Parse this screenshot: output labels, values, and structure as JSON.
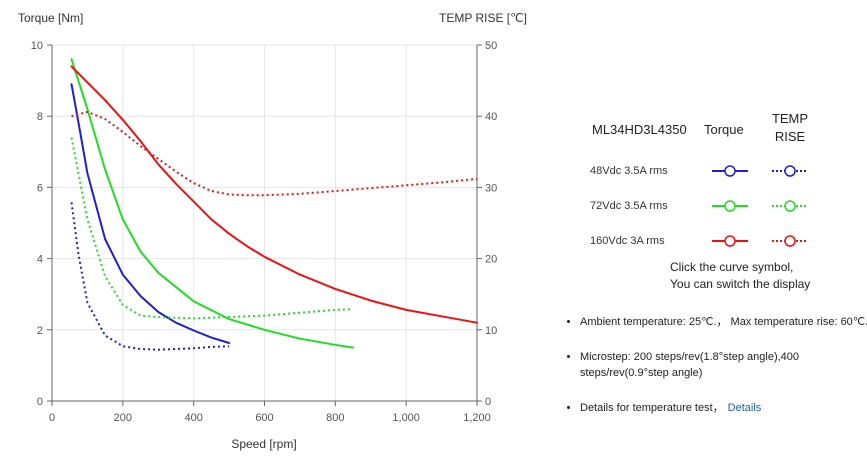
{
  "chart_data": {
    "type": "line",
    "y_left_label": "Torque  [Nm]",
    "y_right_label": "TEMP RISE [℃]",
    "xlabel": "Speed [rpm]",
    "xlim": [
      0,
      1200
    ],
    "ylim_left": [
      0,
      10
    ],
    "ylim_right": [
      0,
      50
    ],
    "x_ticks": [
      "0",
      "200",
      "400",
      "600",
      "800",
      "1,000",
      "1,200"
    ],
    "y_left_ticks": [
      "0",
      "2",
      "4",
      "6",
      "8",
      "10"
    ],
    "y_right_ticks": [
      "0",
      "10",
      "20",
      "30",
      "40",
      "50"
    ],
    "grid": true,
    "series": [
      {
        "kind": "torque",
        "axis": "left",
        "color": "#1f1fd0",
        "style": "solid",
        "x": [
          55,
          75,
          100,
          150,
          200,
          250,
          300,
          350,
          400,
          450,
          500
        ],
        "y": [
          8.9,
          7.8,
          6.4,
          4.55,
          3.55,
          2.95,
          2.5,
          2.2,
          1.98,
          1.78,
          1.63
        ]
      },
      {
        "kind": "temp",
        "axis": "right",
        "color": "#1f1fd0",
        "style": "dotted",
        "x": [
          55,
          75,
          100,
          150,
          200,
          250,
          300,
          350,
          400,
          450,
          500
        ],
        "y": [
          27.9,
          20.5,
          13.8,
          9.2,
          7.7,
          7.3,
          7.2,
          7.3,
          7.4,
          7.6,
          7.7
        ]
      },
      {
        "kind": "torque",
        "axis": "left",
        "color": "#22dd22",
        "style": "solid",
        "x": [
          55,
          100,
          150,
          200,
          250,
          300,
          400,
          500,
          600,
          700,
          800,
          850
        ],
        "y": [
          9.6,
          8.2,
          6.5,
          5.1,
          4.2,
          3.6,
          2.8,
          2.3,
          2.0,
          1.75,
          1.58,
          1.5
        ]
      },
      {
        "kind": "temp",
        "axis": "right",
        "color": "#22dd22",
        "style": "dotted",
        "x": [
          55,
          100,
          150,
          200,
          250,
          300,
          400,
          500,
          600,
          700,
          800,
          850
        ],
        "y": [
          37.0,
          25.5,
          17.5,
          13.5,
          12.0,
          11.8,
          11.6,
          11.8,
          12.0,
          12.4,
          12.8,
          12.9
        ]
      },
      {
        "kind": "torque",
        "axis": "left",
        "color": "#ee1111",
        "style": "solid",
        "x": [
          55,
          100,
          150,
          200,
          250,
          300,
          350,
          400,
          450,
          500,
          550,
          600,
          700,
          800,
          900,
          1000,
          1100,
          1200
        ],
        "y": [
          9.4,
          8.95,
          8.45,
          7.9,
          7.3,
          6.65,
          6.1,
          5.6,
          5.1,
          4.7,
          4.35,
          4.05,
          3.55,
          3.15,
          2.82,
          2.56,
          2.38,
          2.2
        ]
      },
      {
        "kind": "temp",
        "axis": "right",
        "color": "#ee1111",
        "style": "dotted",
        "x": [
          55,
          100,
          150,
          200,
          250,
          300,
          350,
          400,
          450,
          500,
          550,
          600,
          700,
          800,
          900,
          1000,
          1100,
          1200
        ],
        "y": [
          40.0,
          40.6,
          39.6,
          37.8,
          35.8,
          34.0,
          32.2,
          30.6,
          29.5,
          29.0,
          28.9,
          28.9,
          29.1,
          29.5,
          29.9,
          30.3,
          30.7,
          31.2
        ]
      }
    ]
  },
  "legend": {
    "model": "ML34HD3L4350",
    "col_torque": "Torque",
    "col_temp_line1": "TEMP",
    "col_temp_line2": "RISE",
    "rows": [
      {
        "label": "48Vdc   3.5A rms",
        "color": "#1f1fd0"
      },
      {
        "label": "72Vdc   3.5A rms",
        "color": "#22dd22"
      },
      {
        "label": "160Vdc   3A rms",
        "color": "#ee1111"
      }
    ]
  },
  "hint": {
    "line1": "Click the curve symbol,",
    "line2": "You can switch the display"
  },
  "notes": {
    "ambient": "Ambient temperature: 25℃.， Max temperature rise: 60℃.",
    "microstep": "Microstep: 200 steps/rev(1.8°step angle),400 steps/rev(0.9°step angle)",
    "details_text": "Details for temperature test，",
    "details_link": "Details"
  }
}
